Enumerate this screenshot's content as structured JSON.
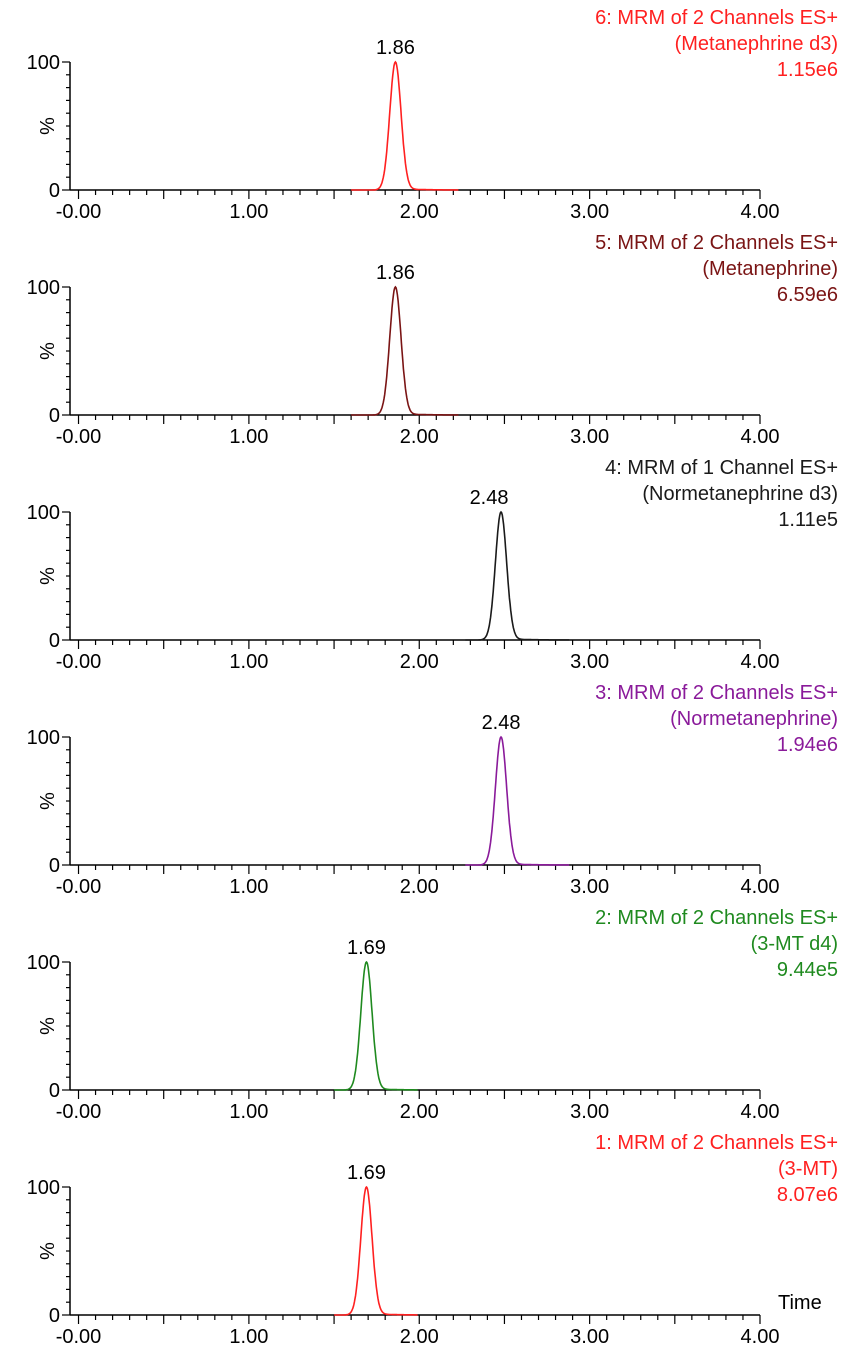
{
  "chart_data": {
    "type": "line",
    "x_axis": {
      "range": [
        -0.05,
        4.0
      ],
      "tick_labels": [
        "-0.00",
        "1.00",
        "2.00",
        "3.00",
        "4.00"
      ],
      "tick_values": [
        0,
        1,
        2,
        3,
        4
      ],
      "label": "Time"
    },
    "y_axis": {
      "range": [
        0,
        100
      ],
      "tick_labels": [
        "0",
        "100"
      ],
      "label": "%"
    },
    "panels": [
      {
        "title": "6: MRM of 2 Channels ES+",
        "compound": "(Metanephrine d3)",
        "intensity": "1.15e6",
        "color": "#ff2020",
        "peak_label": "1.86",
        "peak_time": 1.86,
        "peak_width": 0.033,
        "trace_range": [
          1.6,
          2.23
        ]
      },
      {
        "title": "5: MRM of 2 Channels ES+",
        "compound": "(Metanephrine)",
        "intensity": "6.59e6",
        "color": "#7a1414",
        "peak_label": "1.86",
        "peak_time": 1.86,
        "peak_width": 0.033,
        "trace_range": [
          1.6,
          2.23
        ]
      },
      {
        "title": "4: MRM of 1 Channel ES+",
        "compound": "(Normetanephrine d3)",
        "intensity": "1.11e5",
        "color": "#1a1a1a",
        "peak_label": "2.48",
        "peak_time": 2.48,
        "peak_width": 0.033,
        "trace_range": [
          2.27,
          2.88
        ]
      },
      {
        "title": "3: MRM of 2 Channels ES+",
        "compound": "(Normetanephrine)",
        "intensity": "1.94e6",
        "color": "#8a1a9a",
        "peak_label": "2.48",
        "peak_time": 2.48,
        "peak_width": 0.033,
        "trace_range": [
          2.27,
          2.88
        ]
      },
      {
        "title": "2: MRM of 2 Channels ES+",
        "compound": "(3-MT d4)",
        "intensity": "9.44e5",
        "color": "#1f8a1f",
        "peak_label": "1.69",
        "peak_time": 1.69,
        "peak_width": 0.033,
        "trace_range": [
          1.5,
          1.99
        ]
      },
      {
        "title": "1: MRM of 2 Channels ES+",
        "compound": "(3-MT)",
        "intensity": "8.07e6",
        "color": "#ff2020",
        "peak_label": "1.69",
        "peak_time": 1.69,
        "peak_width": 0.033,
        "trace_range": [
          1.5,
          1.99
        ]
      }
    ]
  }
}
